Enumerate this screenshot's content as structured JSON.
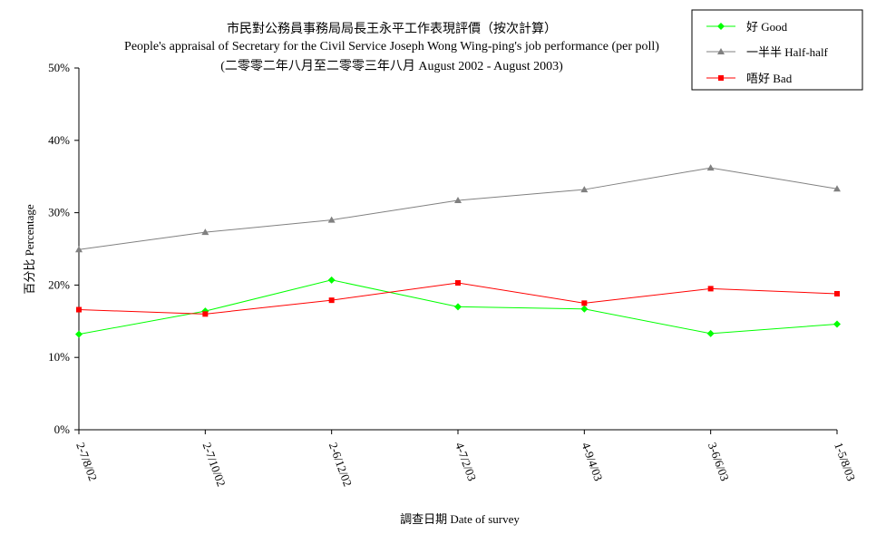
{
  "chart_data": {
    "type": "line",
    "title_lines": [
      "市民對公務員事務局局長王永平工作表現評價（按次計算）",
      "People's appraisal of Secretary for the Civil Service Joseph Wong Wing-ping's job performance (per poll)",
      "(二零零二年八月至二零零三年八月 August 2002 - August 2003)"
    ],
    "xlabel": "調查日期 Date of survey",
    "ylabel": "百分比 Percentage",
    "categories": [
      "2-7/8/02",
      "2-7/10/02",
      "2-6/12/02",
      "4-7/2/03",
      "4-9/4/03",
      "3-6/6/03",
      "1-5/8/03"
    ],
    "ylim": [
      0,
      50
    ],
    "yticks": [
      "0%",
      "10%",
      "20%",
      "30%",
      "40%",
      "50%"
    ],
    "grid": false,
    "legend_position": "top-right",
    "series": [
      {
        "name": "好 Good",
        "color": "#00ff00",
        "marker": "diamond",
        "values": [
          13.2,
          16.4,
          20.7,
          17.0,
          16.7,
          13.3,
          14.6
        ]
      },
      {
        "name": "一半半 Half-half",
        "color": "#808080",
        "marker": "triangle",
        "values": [
          24.9,
          27.3,
          29.0,
          31.7,
          33.2,
          36.2,
          33.3
        ]
      },
      {
        "name": "唔好 Bad",
        "color": "#ff0000",
        "marker": "square",
        "values": [
          16.6,
          16.0,
          17.9,
          20.3,
          17.5,
          19.5,
          18.8
        ]
      }
    ]
  }
}
